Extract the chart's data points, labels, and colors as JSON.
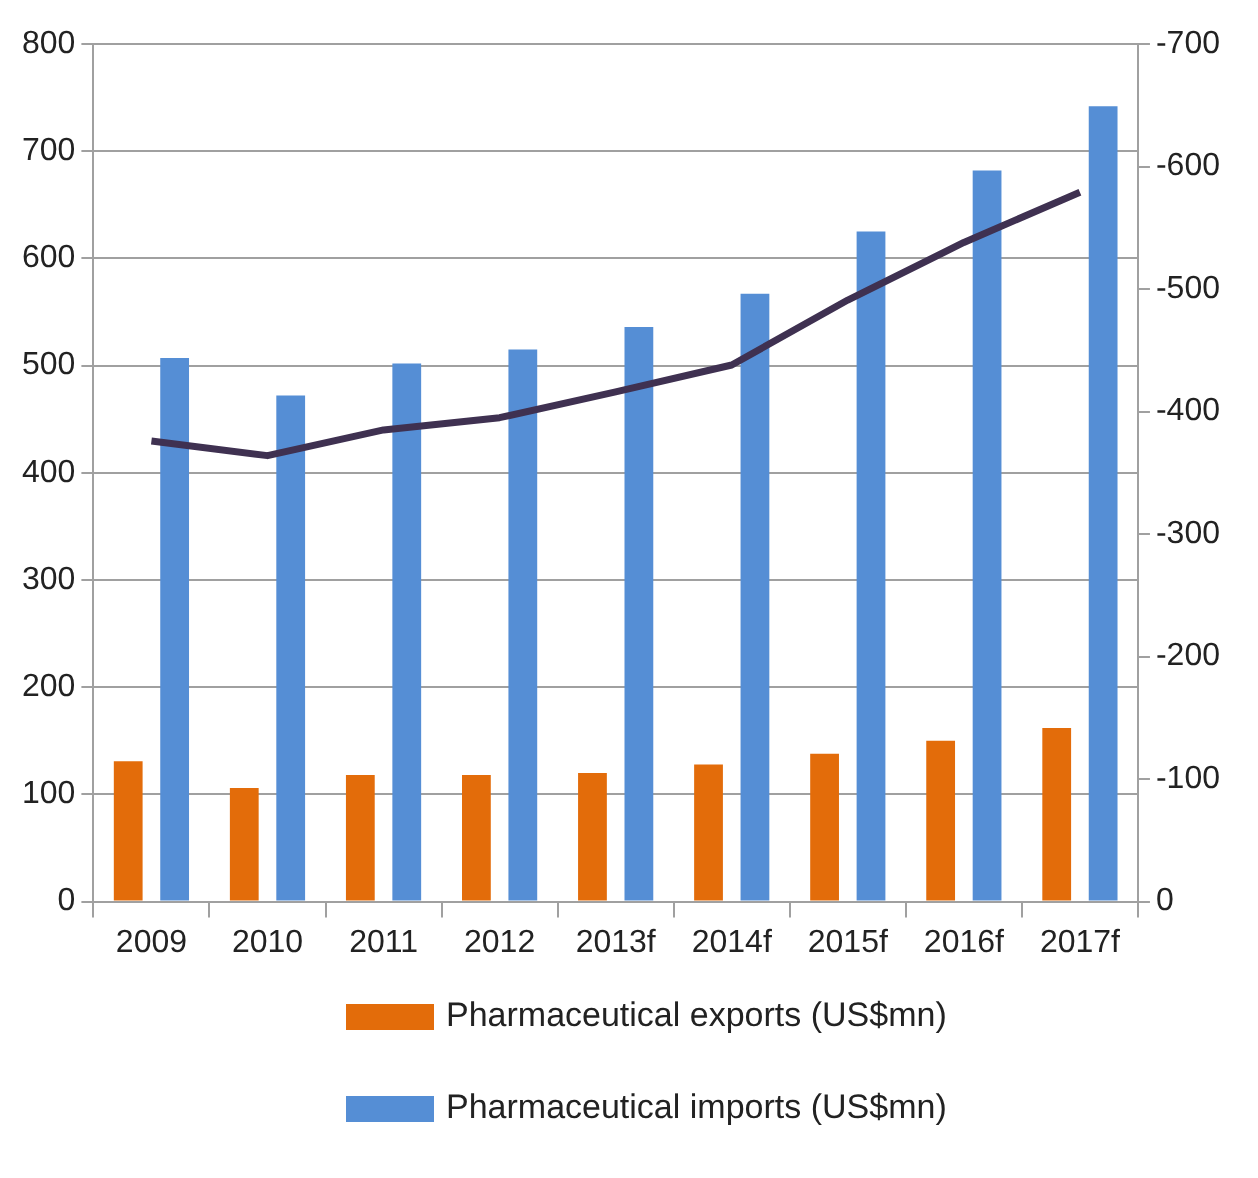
{
  "chart_data": {
    "type": "bar",
    "categories": [
      "2009",
      "2010",
      "2011",
      "2012",
      "2013f",
      "2014f",
      "2015f",
      "2016f",
      "2017f"
    ],
    "series": [
      {
        "name": "Pharmaceutical exports (US$mn)",
        "color": "#e36c0a",
        "values": [
          131,
          106,
          118,
          118,
          120,
          128,
          138,
          150,
          162
        ]
      },
      {
        "name": "Pharmaceutical imports (US$mn)",
        "color": "#558ed5",
        "values": [
          507,
          472,
          502,
          515,
          536,
          567,
          625,
          682,
          742
        ]
      },
      {
        "type": "line",
        "axis": "y2",
        "color": "#3f3151",
        "values": [
          -376,
          -364,
          -385,
          -395,
          -416,
          -438,
          -491,
          -538,
          -579
        ]
      }
    ],
    "ylim": [
      0,
      800
    ],
    "yticks": [
      0,
      100,
      200,
      300,
      400,
      500,
      600,
      700,
      800
    ],
    "y2lim": [
      0,
      -700
    ],
    "y2ticks": [
      0,
      -100,
      -200,
      -300,
      -400,
      -500,
      -600,
      -700
    ],
    "grid": "y",
    "legend": "bottom",
    "marker": "none",
    "line_style": "solid"
  }
}
